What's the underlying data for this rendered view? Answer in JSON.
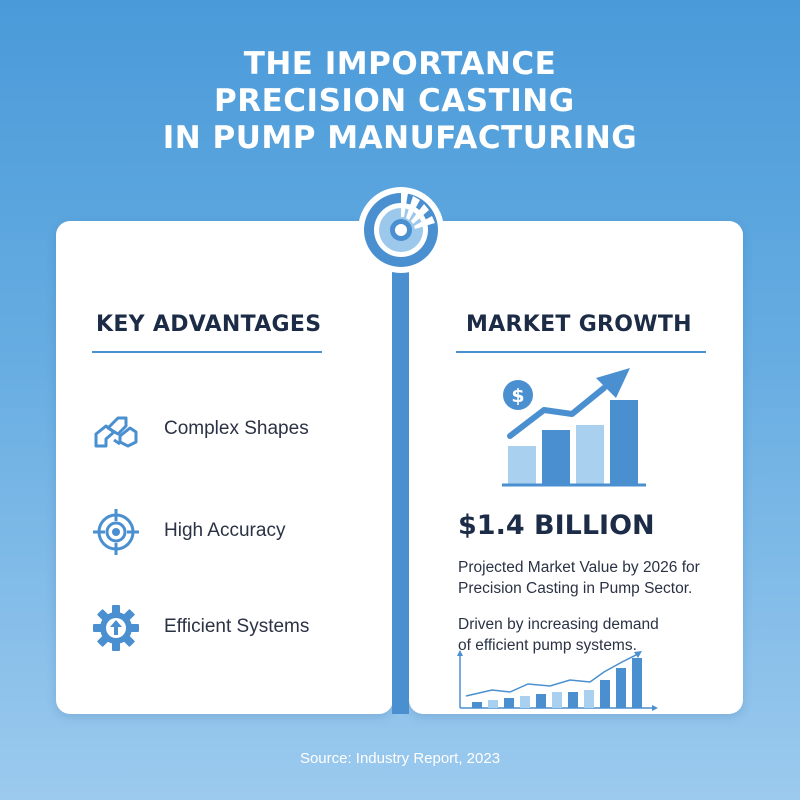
{
  "title": {
    "line1": "THE IMPORTANCE",
    "line2": "PRECISION CASTING ",
    "line3": "IN PUMP MANUFACTURING"
  },
  "key_advantages": {
    "heading": "KEY ADVANTAGES",
    "items": [
      {
        "label": "Complex Shapes",
        "icon": "linked-shapes-icon"
      },
      {
        "label": "High Accuracy",
        "icon": "target-crosshair-icon"
      },
      {
        "label": "Efficient Systems",
        "icon": "gear-arrow-icon"
      }
    ]
  },
  "market_growth": {
    "heading": "MARKET GROWTH",
    "value": "$1.4 BILLION",
    "projection_lines": [
      "Projected Market Value by 2026 for",
      "Precision Casting in Pump Sector."
    ],
    "driver_lines": [
      "Driven by increasing demand",
      "of efficient pump systems."
    ],
    "dollar_symbol": "$"
  },
  "source": "Source: Industry Report, 2023",
  "colors": {
    "accent": "#4a8fcf",
    "light_accent": "#9cc8ec",
    "heading": "#1c2b46",
    "text": "#2a3244"
  }
}
